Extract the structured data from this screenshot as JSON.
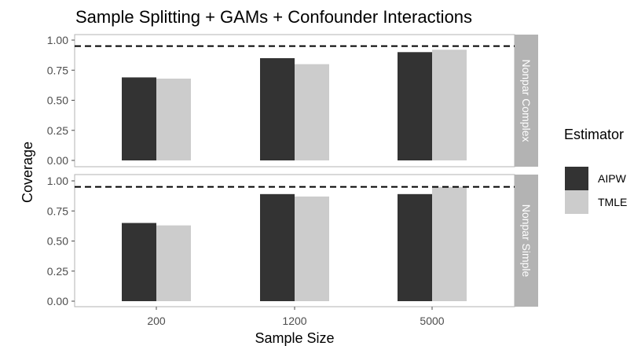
{
  "chart_data": {
    "type": "bar",
    "title": "Sample Splitting + GAMs + Confounder Interactions",
    "xlabel": "Sample Size",
    "ylabel": "Coverage",
    "categories": [
      "200",
      "1200",
      "5000"
    ],
    "ylim": [
      0,
      1
    ],
    "yticks": [
      "0.00",
      "0.25",
      "0.50",
      "0.75",
      "1.00"
    ],
    "reference_line": 0.95,
    "legend": {
      "title": "Estimator",
      "position": "right",
      "entries": [
        {
          "label": "AIPW",
          "color": "#333333"
        },
        {
          "label": "TMLE",
          "color": "#cccccc"
        }
      ]
    },
    "panels": [
      {
        "facet": "Nonpar Complex",
        "series": [
          {
            "name": "AIPW",
            "values": [
              0.69,
              0.85,
              0.9
            ]
          },
          {
            "name": "TMLE",
            "values": [
              0.68,
              0.8,
              0.92
            ]
          }
        ]
      },
      {
        "facet": "Nonpar Simple",
        "series": [
          {
            "name": "AIPW",
            "values": [
              0.65,
              0.89,
              0.89
            ]
          },
          {
            "name": "TMLE",
            "values": [
              0.63,
              0.87,
              0.95
            ]
          }
        ]
      }
    ],
    "grid": false
  }
}
